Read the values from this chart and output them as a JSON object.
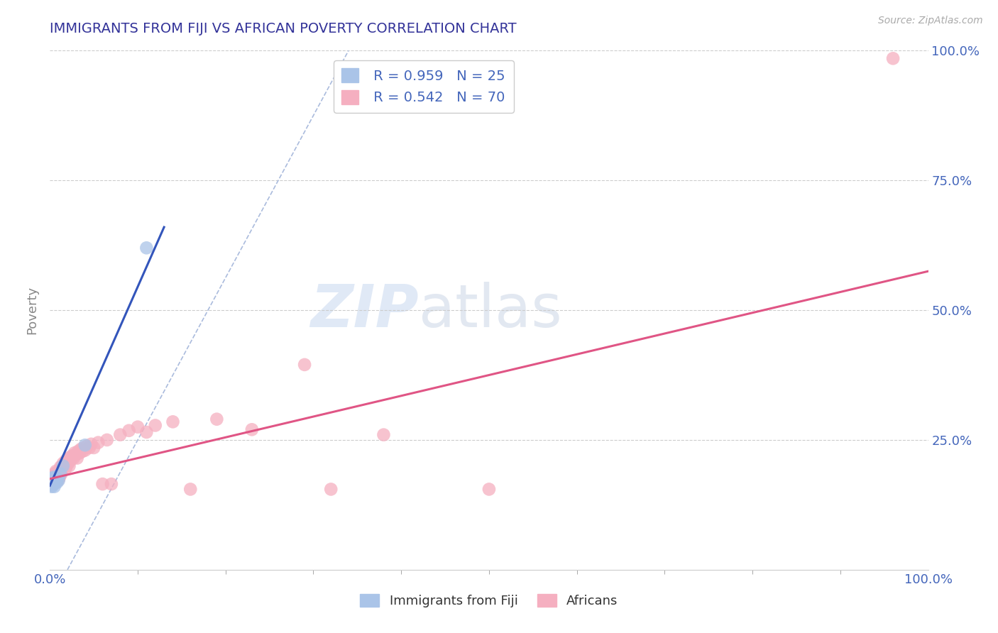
{
  "title": "IMMIGRANTS FROM FIJI VS AFRICAN POVERTY CORRELATION CHART",
  "source": "Source: ZipAtlas.com",
  "ylabel": "Poverty",
  "xlim": [
    0.0,
    1.0
  ],
  "ylim": [
    0.0,
    1.0
  ],
  "xtick_labels": [
    "0.0%",
    "100.0%"
  ],
  "ytick_positions": [
    0.25,
    0.5,
    0.75,
    1.0
  ],
  "ytick_labels_right": [
    "25.0%",
    "50.0%",
    "75.0%",
    "100.0%"
  ],
  "fiji_R": "0.959",
  "fiji_N": "25",
  "african_R": "0.542",
  "african_N": "70",
  "fiji_color": "#aac4e8",
  "fiji_edge_color": "#7799cc",
  "fiji_line_color": "#3355bb",
  "african_color": "#f5afc0",
  "african_edge_color": "#e888a8",
  "african_line_color": "#e05585",
  "fiji_scatter": [
    [
      0.001,
      0.175
    ],
    [
      0.001,
      0.165
    ],
    [
      0.002,
      0.17
    ],
    [
      0.002,
      0.16
    ],
    [
      0.002,
      0.175
    ],
    [
      0.003,
      0.168
    ],
    [
      0.003,
      0.172
    ],
    [
      0.003,
      0.162
    ],
    [
      0.004,
      0.17
    ],
    [
      0.004,
      0.165
    ],
    [
      0.004,
      0.178
    ],
    [
      0.005,
      0.168
    ],
    [
      0.005,
      0.172
    ],
    [
      0.005,
      0.16
    ],
    [
      0.006,
      0.175
    ],
    [
      0.006,
      0.168
    ],
    [
      0.007,
      0.17
    ],
    [
      0.007,
      0.178
    ],
    [
      0.008,
      0.168
    ],
    [
      0.009,
      0.175
    ],
    [
      0.01,
      0.172
    ],
    [
      0.012,
      0.185
    ],
    [
      0.015,
      0.2
    ],
    [
      0.04,
      0.24
    ],
    [
      0.11,
      0.62
    ]
  ],
  "african_scatter": [
    [
      0.003,
      0.175
    ],
    [
      0.003,
      0.165
    ],
    [
      0.004,
      0.18
    ],
    [
      0.004,
      0.168
    ],
    [
      0.005,
      0.175
    ],
    [
      0.005,
      0.185
    ],
    [
      0.006,
      0.178
    ],
    [
      0.006,
      0.168
    ],
    [
      0.007,
      0.18
    ],
    [
      0.007,
      0.19
    ],
    [
      0.008,
      0.178
    ],
    [
      0.008,
      0.188
    ],
    [
      0.009,
      0.182
    ],
    [
      0.009,
      0.172
    ],
    [
      0.01,
      0.185
    ],
    [
      0.01,
      0.175
    ],
    [
      0.011,
      0.188
    ],
    [
      0.011,
      0.178
    ],
    [
      0.012,
      0.19
    ],
    [
      0.012,
      0.198
    ],
    [
      0.013,
      0.185
    ],
    [
      0.013,
      0.195
    ],
    [
      0.014,
      0.2
    ],
    [
      0.015,
      0.205
    ],
    [
      0.015,
      0.195
    ],
    [
      0.016,
      0.2
    ],
    [
      0.017,
      0.205
    ],
    [
      0.018,
      0.21
    ],
    [
      0.018,
      0.195
    ],
    [
      0.019,
      0.2
    ],
    [
      0.02,
      0.21
    ],
    [
      0.021,
      0.205
    ],
    [
      0.022,
      0.215
    ],
    [
      0.022,
      0.2
    ],
    [
      0.023,
      0.21
    ],
    [
      0.024,
      0.218
    ],
    [
      0.025,
      0.215
    ],
    [
      0.026,
      0.22
    ],
    [
      0.027,
      0.215
    ],
    [
      0.028,
      0.225
    ],
    [
      0.03,
      0.222
    ],
    [
      0.031,
      0.215
    ],
    [
      0.032,
      0.228
    ],
    [
      0.034,
      0.225
    ],
    [
      0.035,
      0.232
    ],
    [
      0.037,
      0.228
    ],
    [
      0.038,
      0.235
    ],
    [
      0.04,
      0.23
    ],
    [
      0.042,
      0.238
    ],
    [
      0.045,
      0.235
    ],
    [
      0.047,
      0.242
    ],
    [
      0.05,
      0.235
    ],
    [
      0.055,
      0.245
    ],
    [
      0.06,
      0.165
    ],
    [
      0.065,
      0.25
    ],
    [
      0.07,
      0.165
    ],
    [
      0.08,
      0.26
    ],
    [
      0.09,
      0.268
    ],
    [
      0.1,
      0.275
    ],
    [
      0.11,
      0.265
    ],
    [
      0.12,
      0.278
    ],
    [
      0.14,
      0.285
    ],
    [
      0.16,
      0.155
    ],
    [
      0.19,
      0.29
    ],
    [
      0.23,
      0.27
    ],
    [
      0.29,
      0.395
    ],
    [
      0.32,
      0.155
    ],
    [
      0.38,
      0.26
    ],
    [
      0.5,
      0.155
    ],
    [
      0.96,
      0.985
    ]
  ],
  "fiji_trendline": [
    [
      0.0,
      0.162
    ],
    [
      0.13,
      0.66
    ]
  ],
  "african_trendline": [
    [
      0.0,
      0.175
    ],
    [
      1.0,
      0.575
    ]
  ],
  "dashed_line_x": [
    0.02,
    0.34
  ],
  "dashed_line_y": [
    0.0,
    1.0
  ],
  "watermark_text": "ZIPatlas",
  "background_color": "#ffffff",
  "grid_color": "#cccccc",
  "title_color": "#333399",
  "axis_tick_color": "#4466bb",
  "right_tick_color": "#4466bb",
  "legend_label_color": "#4466bb",
  "n_label_color": "#333333"
}
